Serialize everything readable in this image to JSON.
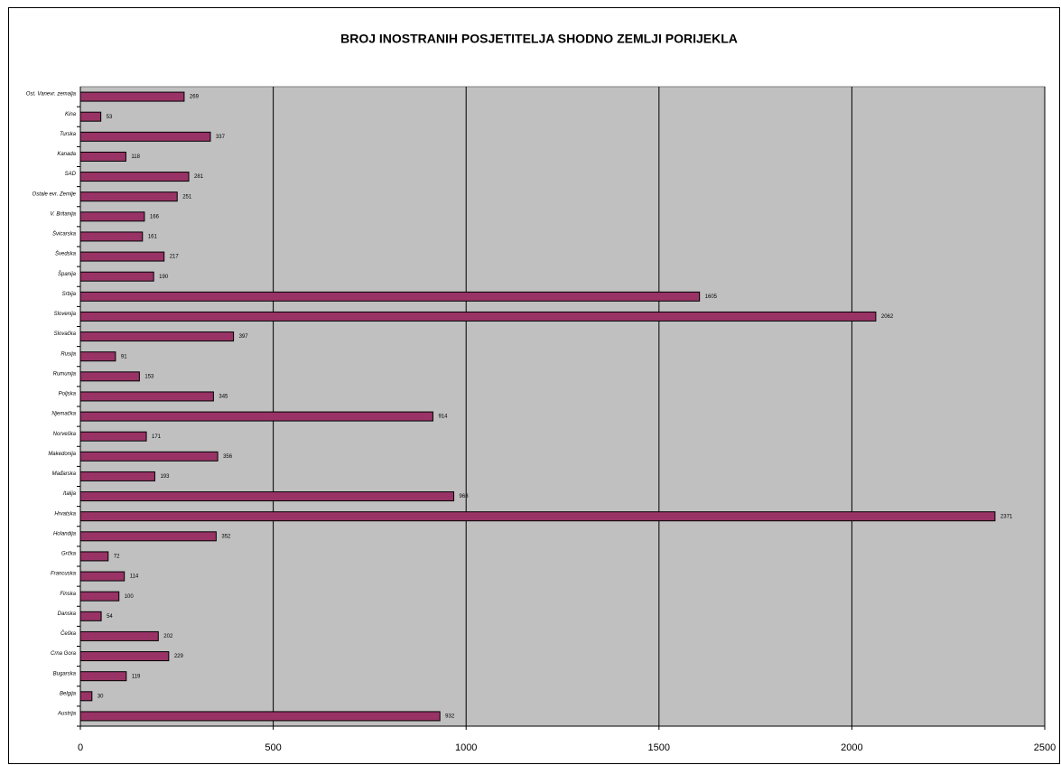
{
  "chart_data": {
    "type": "bar",
    "orientation": "horizontal",
    "title": "BROJ INOSTRANIH POSJETITELJA SHODNO ZEMLJI PORIJEKLA",
    "categories": [
      "Austrija",
      "Belgija",
      "Bugarska",
      "Crna Gora",
      "Češka",
      "Danska",
      "Finska",
      "Francuska",
      "Grčka",
      "Holandija",
      "Hrvatska",
      "Italija",
      "Mađarska",
      "Makedonija",
      "Norveška",
      "Njemačka",
      "Poljska",
      "Rumunija",
      "Rusija",
      "Slovačka",
      "Slovenija",
      "Srbija",
      "Španija",
      "Švedska",
      "Švicarska",
      "V. Britanija",
      "Ostale evr. Zemlje",
      "SAD",
      "Kanada",
      "Turska",
      "Kina",
      "Ost. Vanevr. zemalja"
    ],
    "values": [
      932,
      30,
      119,
      229,
      202,
      54,
      100,
      114,
      72,
      352,
      2371,
      968,
      193,
      356,
      171,
      914,
      345,
      153,
      91,
      397,
      2062,
      1605,
      190,
      217,
      161,
      166,
      251,
      281,
      118,
      337,
      53,
      269
    ],
    "color": "#993366",
    "xlim": [
      0,
      2500
    ],
    "xticks": [
      0,
      500,
      1000,
      1500,
      2000,
      2500
    ],
    "grid": true
  }
}
